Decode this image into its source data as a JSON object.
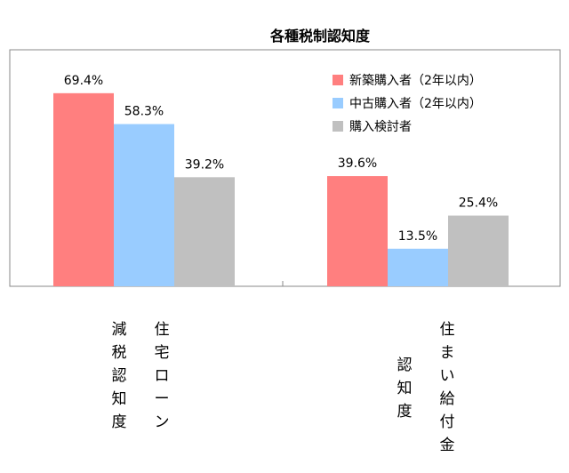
{
  "chart_data": {
    "type": "bar",
    "title": "各種税制認知度",
    "categories": [
      "住宅ローン減税認知度",
      "住まい給付金認知度"
    ],
    "category_label_columns": [
      [
        "住宅ローン",
        "減税認知度"
      ],
      [
        "住まい給付金",
        "認知度"
      ]
    ],
    "series": [
      {
        "name": "新築購入者（2年以内）",
        "values": [
          69.4,
          39.6
        ],
        "labels": [
          "69.4%",
          "39.6%"
        ],
        "color": "#ff7f7f"
      },
      {
        "name": "中古購入者（2年以内）",
        "values": [
          58.3,
          13.5
        ],
        "labels": [
          "58.3%",
          "13.5%"
        ],
        "color": "#99ccff"
      },
      {
        "name": "購入検討者",
        "values": [
          39.2,
          25.4
        ],
        "labels": [
          "39.2%",
          "25.4%"
        ],
        "color": "#c0c0c0"
      }
    ],
    "ylim": [
      0,
      85
    ],
    "grid": false,
    "legend_position": "top-right",
    "xlabel": "",
    "ylabel": ""
  }
}
